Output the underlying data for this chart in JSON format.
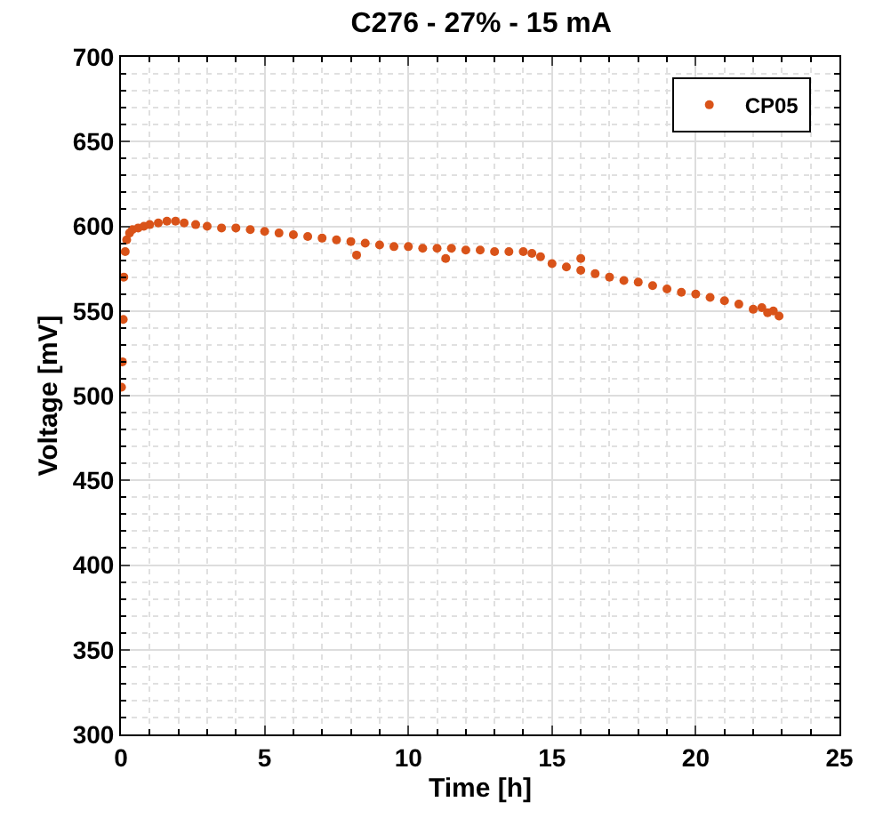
{
  "chart_data": {
    "type": "scatter",
    "title": "C276 - 27% - 15 mA",
    "xlabel": "Time [h]",
    "ylabel": "Voltage [mV]",
    "xlim": [
      0,
      25
    ],
    "xticks": [
      0,
      5,
      10,
      15,
      20,
      25
    ],
    "ylim": [
      300,
      700
    ],
    "yticks": [
      300,
      350,
      400,
      450,
      500,
      550,
      600,
      650,
      700
    ],
    "grid": true,
    "legend": "top right",
    "marker": "circle",
    "series": [
      {
        "name": "CP05",
        "color": "#d95319",
        "x": [
          0.02,
          0.05,
          0.08,
          0.1,
          0.15,
          0.2,
          0.3,
          0.4,
          0.6,
          0.8,
          1.0,
          1.3,
          1.6,
          1.9,
          2.2,
          2.6,
          3.0,
          3.5,
          4.0,
          4.5,
          5.0,
          5.5,
          6.0,
          6.5,
          7.0,
          7.5,
          8.0,
          8.2,
          8.5,
          9.0,
          9.5,
          10.0,
          10.5,
          11.0,
          11.3,
          11.5,
          12.0,
          12.5,
          13.0,
          13.5,
          14.0,
          14.3,
          14.6,
          15.0,
          15.5,
          16.0,
          16.0,
          16.5,
          17.0,
          17.5,
          18.0,
          18.5,
          19.0,
          19.5,
          20.0,
          20.5,
          21.0,
          21.5,
          22.0,
          22.3,
          22.5,
          22.7,
          22.9
        ],
        "values": [
          505,
          520,
          545,
          570,
          585,
          592,
          596,
          598,
          599,
          600,
          601,
          602,
          603,
          603,
          602,
          601,
          600,
          599,
          599,
          598,
          597,
          596,
          595,
          594,
          593,
          592,
          591,
          583,
          590,
          589,
          588,
          588,
          587,
          587,
          581,
          587,
          586,
          586,
          585,
          585,
          585,
          584,
          582,
          578,
          576,
          574,
          581,
          572,
          570,
          568,
          567,
          565,
          563,
          561,
          560,
          558,
          556,
          554,
          551,
          552,
          549,
          550,
          547
        ]
      }
    ]
  }
}
